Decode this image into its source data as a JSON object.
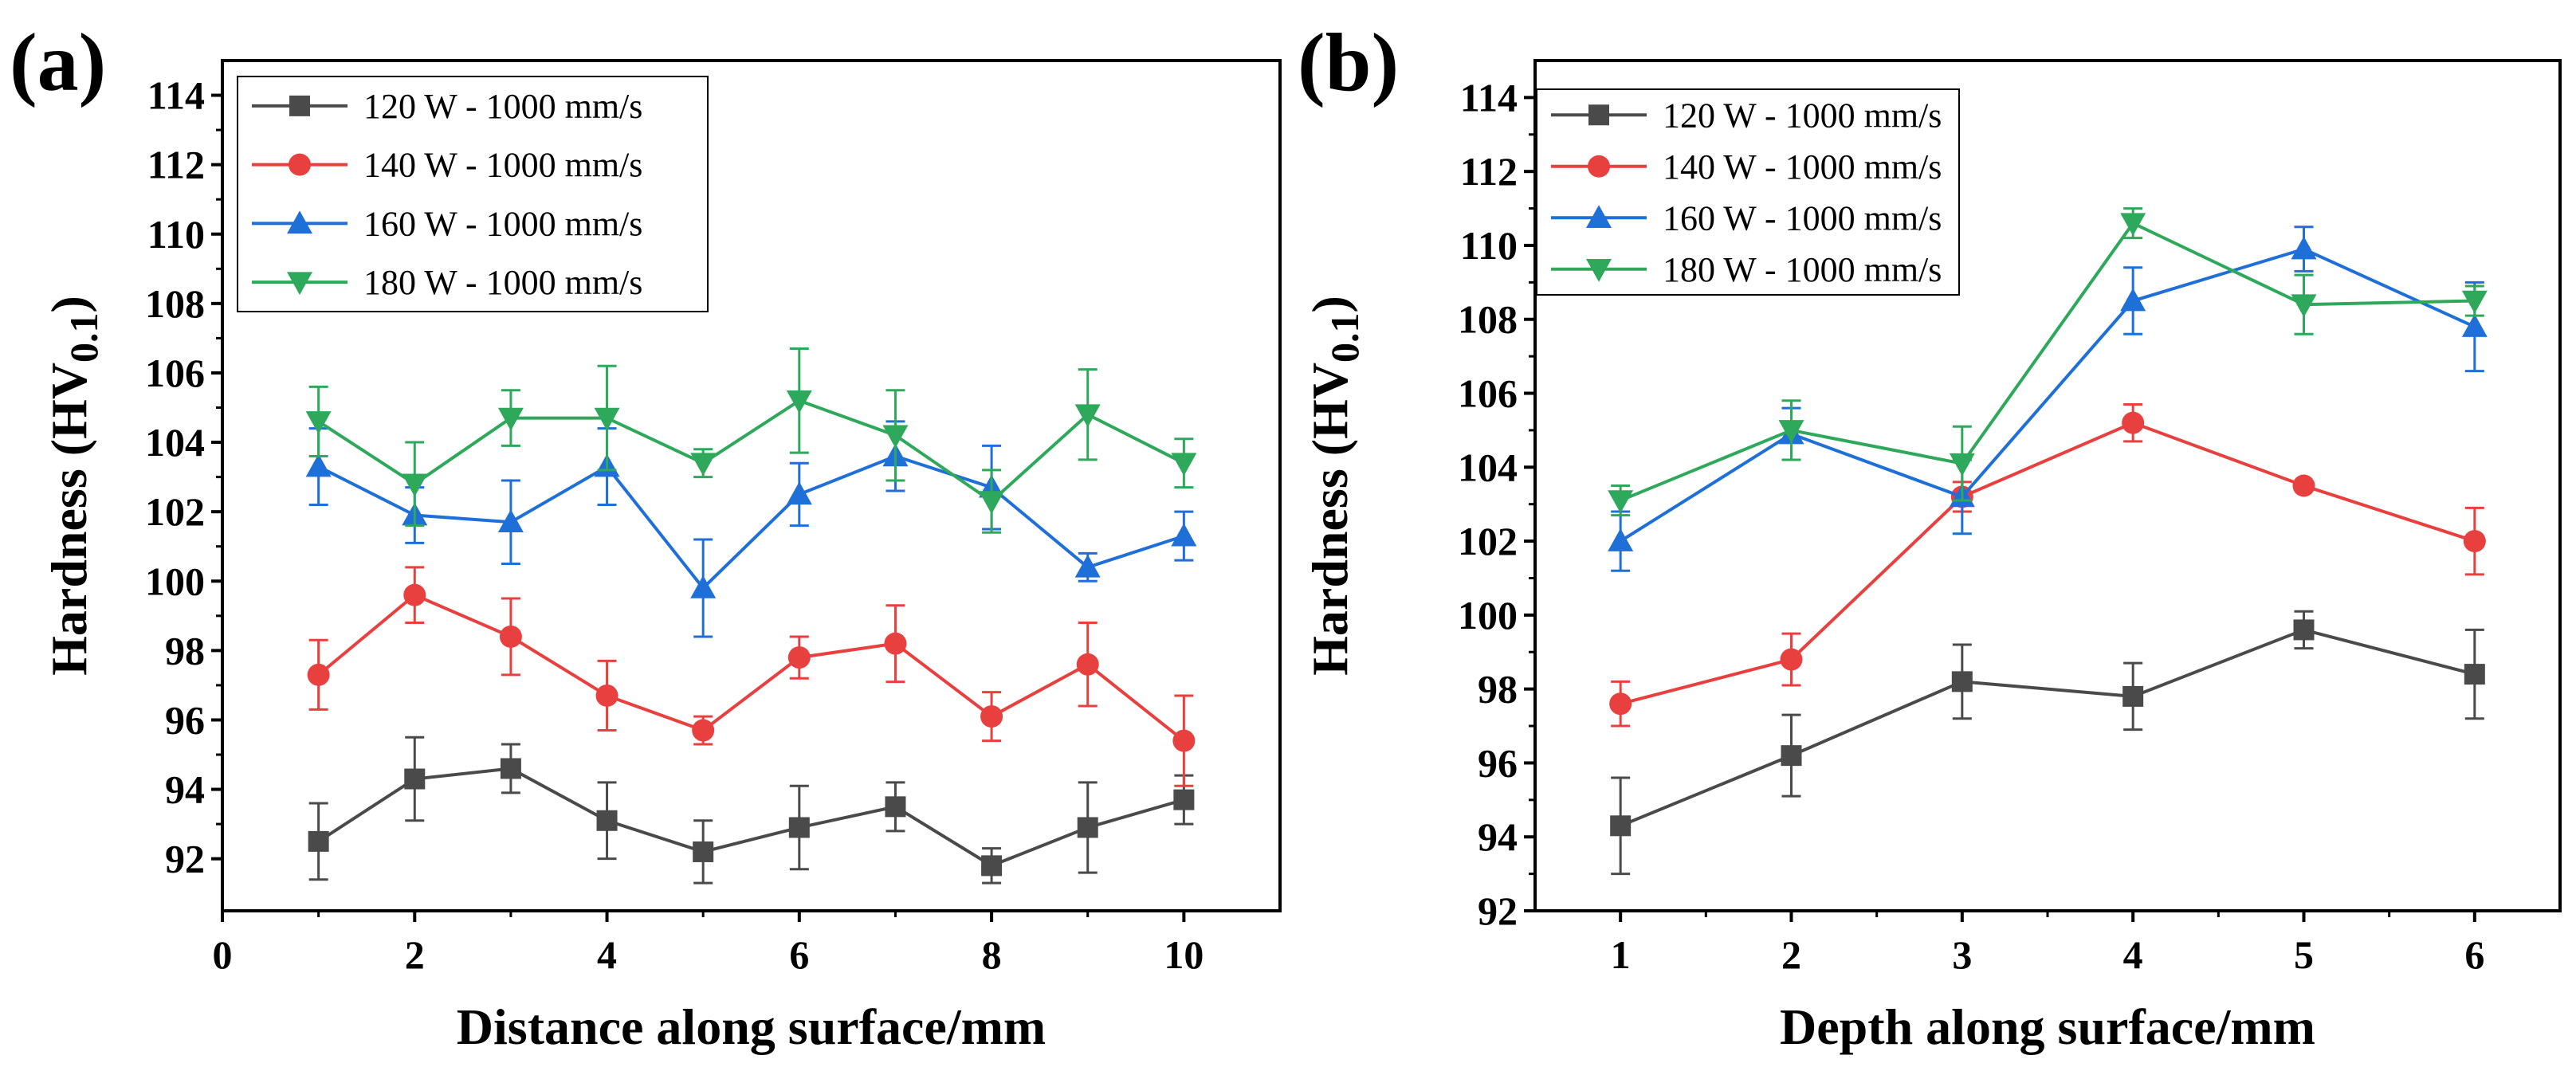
{
  "chart_data": [
    {
      "type": "line",
      "panel_label": "(a)",
      "xlabel": "Distance along surface/mm",
      "ylabel_main": "Hardness (HV",
      "ylabel_sub": "0.1",
      "ylabel_close": ")",
      "xlim": [
        0,
        11
      ],
      "ylim": [
        90.5,
        115
      ],
      "xticks": [
        0,
        2,
        4,
        6,
        8,
        10
      ],
      "yticks": [
        92,
        94,
        96,
        98,
        100,
        102,
        104,
        106,
        108,
        110,
        112,
        114
      ],
      "legend_position": "top-left",
      "x": [
        1,
        2,
        3,
        4,
        5,
        6,
        7,
        8,
        9,
        10
      ],
      "series": [
        {
          "name": "120 W - 1000 mm/s",
          "color": "#4a4a4a",
          "marker": "square",
          "values": [
            92.5,
            94.3,
            94.6,
            93.1,
            92.2,
            92.9,
            93.5,
            91.8,
            92.9,
            93.7
          ],
          "errors": [
            1.1,
            1.2,
            0.7,
            1.1,
            0.9,
            1.2,
            0.7,
            0.5,
            1.3,
            0.7
          ]
        },
        {
          "name": "140 W - 1000 mm/s",
          "color": "#e8403e",
          "marker": "circle",
          "values": [
            97.3,
            99.6,
            98.4,
            96.7,
            95.7,
            97.8,
            98.2,
            96.1,
            97.6,
            95.4
          ],
          "errors": [
            1.0,
            0.8,
            1.1,
            1.0,
            0.4,
            0.6,
            1.1,
            0.7,
            1.2,
            1.3
          ]
        },
        {
          "name": "160 W - 1000 mm/s",
          "color": "#1f6fd8",
          "marker": "triangle-up",
          "values": [
            103.3,
            101.9,
            101.7,
            103.3,
            99.8,
            102.5,
            103.6,
            102.7,
            100.4,
            101.3
          ],
          "errors": [
            1.1,
            0.8,
            1.2,
            1.1,
            1.4,
            0.9,
            1.0,
            1.2,
            0.4,
            0.7
          ]
        },
        {
          "name": "180 W - 1000 mm/s",
          "color": "#2ea85a",
          "marker": "triangle-down",
          "values": [
            104.6,
            102.8,
            104.7,
            104.7,
            103.4,
            105.2,
            104.2,
            102.3,
            104.8,
            103.4
          ],
          "errors": [
            1.0,
            1.2,
            0.8,
            1.5,
            0.4,
            1.5,
            1.3,
            0.9,
            1.3,
            0.7
          ]
        }
      ]
    },
    {
      "type": "line",
      "panel_label": "(b)",
      "xlabel": "Depth along surface/mm",
      "ylabel_main": "Hardness (HV",
      "ylabel_sub": "0.1",
      "ylabel_close": ")",
      "xlim": [
        0.5,
        6.5
      ],
      "ylim": [
        92,
        115
      ],
      "xticks": [
        1,
        2,
        3,
        4,
        5,
        6
      ],
      "yticks": [
        92,
        94,
        96,
        98,
        100,
        102,
        104,
        106,
        108,
        110,
        112,
        114
      ],
      "legend_position": "top-left",
      "x": [
        1,
        2,
        3,
        4,
        5,
        6
      ],
      "series": [
        {
          "name": "120 W - 1000 mm/s",
          "color": "#4a4a4a",
          "marker": "square",
          "values": [
            94.3,
            96.2,
            98.2,
            97.8,
            99.6,
            98.4
          ],
          "errors": [
            1.3,
            1.1,
            1.0,
            0.9,
            0.5,
            1.2
          ]
        },
        {
          "name": "140 W - 1000 mm/s",
          "color": "#e8403e",
          "marker": "circle",
          "values": [
            97.6,
            98.8,
            103.2,
            105.2,
            103.5,
            102.0
          ],
          "errors": [
            0.6,
            0.7,
            0.4,
            0.5,
            0.1,
            0.9
          ]
        },
        {
          "name": "160 W - 1000 mm/s",
          "color": "#1f6fd8",
          "marker": "triangle-up",
          "values": [
            102.0,
            104.9,
            103.2,
            108.5,
            109.9,
            107.8
          ],
          "errors": [
            0.8,
            0.7,
            1.0,
            0.9,
            0.6,
            1.2
          ]
        },
        {
          "name": "180 W - 1000 mm/s",
          "color": "#2ea85a",
          "marker": "triangle-down",
          "values": [
            103.1,
            105.0,
            104.1,
            110.6,
            108.4,
            108.5
          ],
          "errors": [
            0.4,
            0.8,
            1.0,
            0.4,
            0.8,
            0.4
          ]
        }
      ]
    }
  ]
}
